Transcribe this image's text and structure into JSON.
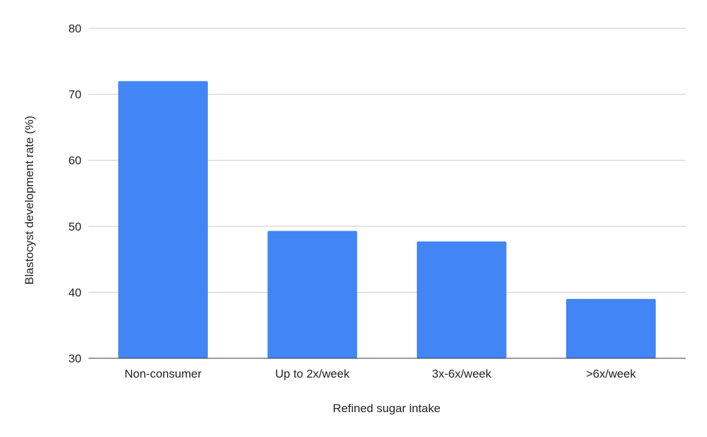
{
  "chart_data": {
    "type": "bar",
    "title": "",
    "xlabel": "Refined sugar intake",
    "ylabel": "Blastocyst development rate (%)",
    "categories": [
      "Non-consumer",
      "Up to 2x/week",
      "3x-6x/week",
      ">6x/week"
    ],
    "values": [
      72,
      49.3,
      47.7,
      39
    ],
    "ylim": [
      30,
      80
    ],
    "yticks": [
      30,
      40,
      50,
      60,
      70,
      80
    ],
    "grid": true,
    "legend": "none",
    "colors": {
      "bar": "#4285f4"
    }
  }
}
